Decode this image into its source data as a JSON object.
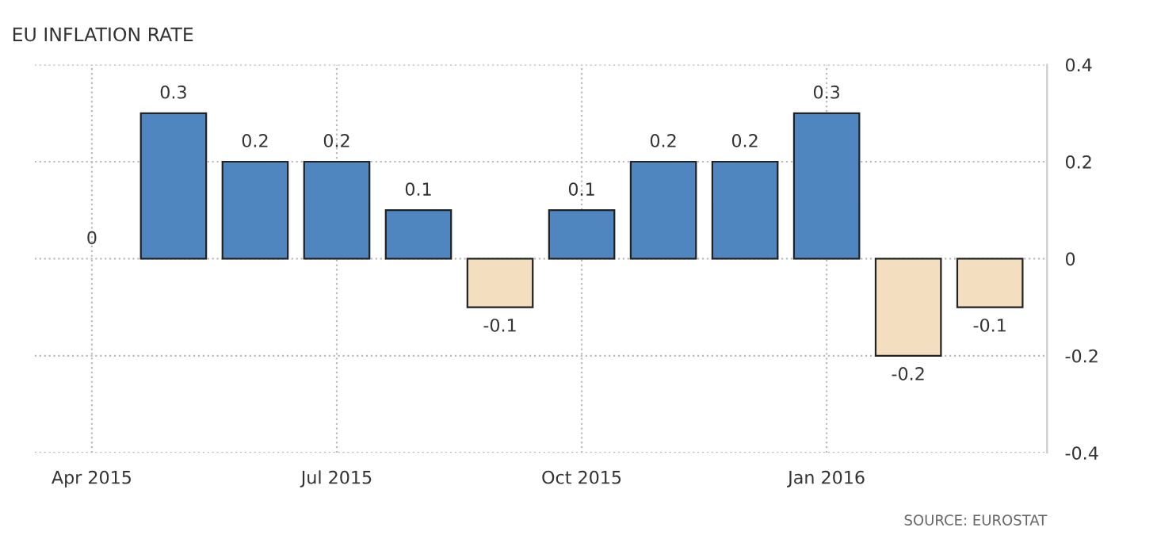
{
  "chart_data": {
    "type": "bar",
    "title": "EU INFLATION RATE",
    "categories": [
      "Apr 2015",
      null,
      null,
      "Jul 2015",
      null,
      null,
      "Oct 2015",
      null,
      null,
      "Jan 2016",
      null,
      null
    ],
    "values": [
      0,
      0.3,
      0.2,
      0.2,
      0.1,
      -0.1,
      0.1,
      0.2,
      0.2,
      0.3,
      -0.2,
      -0.1
    ],
    "colors": [
      "#4f86c0",
      "#4f86c0",
      "#4f86c0",
      "#4f86c0",
      "#4f86c0",
      "#f3dfbf",
      "#4f86c0",
      "#4f86c0",
      "#4f86c0",
      "#4f86c0",
      "#f3dfbf",
      "#f3dfbf"
    ],
    "ylim": [
      -0.4,
      0.4
    ],
    "yticks": [
      -0.4,
      -0.2,
      0,
      0.2,
      0.4
    ],
    "grid": true,
    "data_labels": true,
    "annotations": [
      "SOURCE: EUROSTAT"
    ]
  }
}
